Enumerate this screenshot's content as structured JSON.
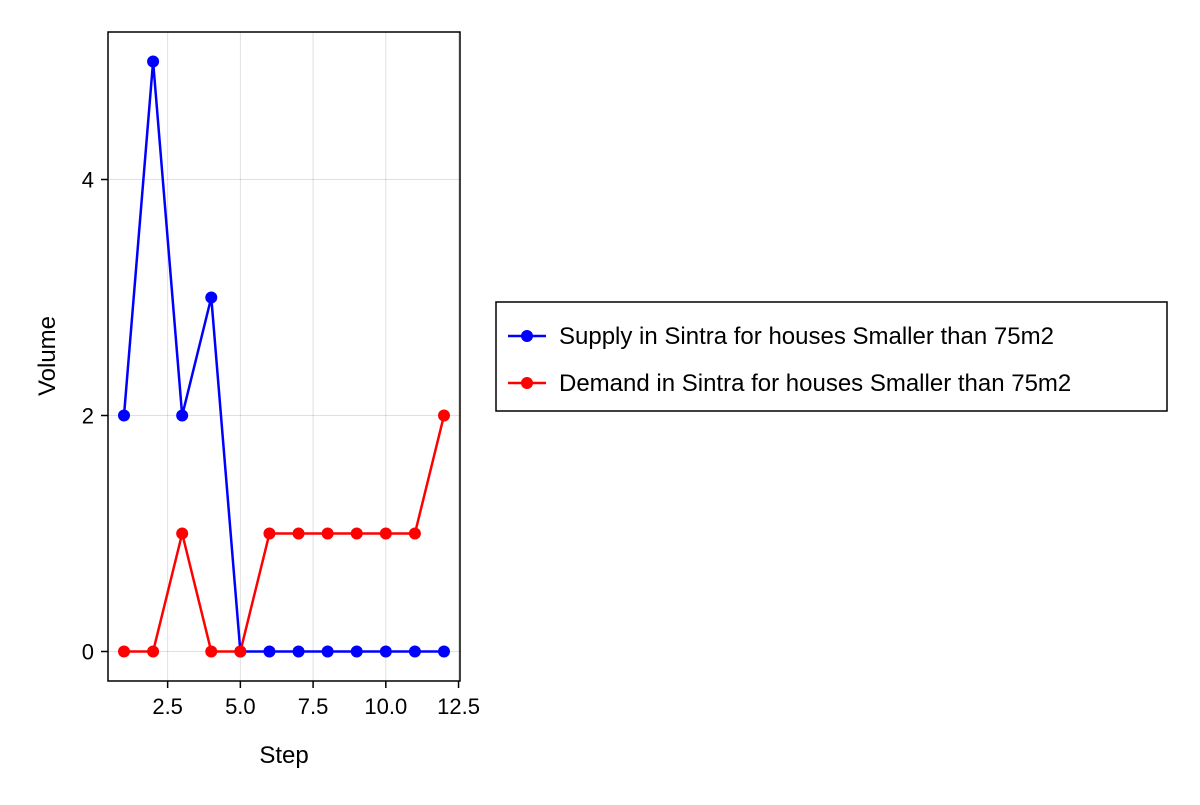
{
  "chart_data": {
    "type": "line",
    "title": "",
    "xlabel": "Step",
    "ylabel": "Volume",
    "xlim": [
      0.45,
      12.55
    ],
    "ylim": [
      -0.25,
      5.25
    ],
    "xticks": [
      2.5,
      5.0,
      7.5,
      10.0,
      12.5
    ],
    "xtick_labels": [
      "2.5",
      "5.0",
      "7.5",
      "10.0",
      "12.5"
    ],
    "yticks": [
      0,
      2,
      4
    ],
    "ytick_labels": [
      "0",
      "2",
      "4"
    ],
    "grid": true,
    "legend_position": "right",
    "x": [
      1,
      2,
      3,
      4,
      5,
      6,
      7,
      8,
      9,
      10,
      11,
      12
    ],
    "series": [
      {
        "name": "Supply in Sintra for houses Smaller than 75m2",
        "color": "#0000ff",
        "values": [
          2,
          5,
          2,
          3,
          0,
          0,
          0,
          0,
          0,
          0,
          0,
          0
        ]
      },
      {
        "name": "Demand in Sintra for houses Smaller than 75m2",
        "color": "#ff0000",
        "values": [
          0,
          0,
          1,
          0,
          0,
          1,
          1,
          1,
          1,
          1,
          1,
          2
        ]
      }
    ]
  }
}
